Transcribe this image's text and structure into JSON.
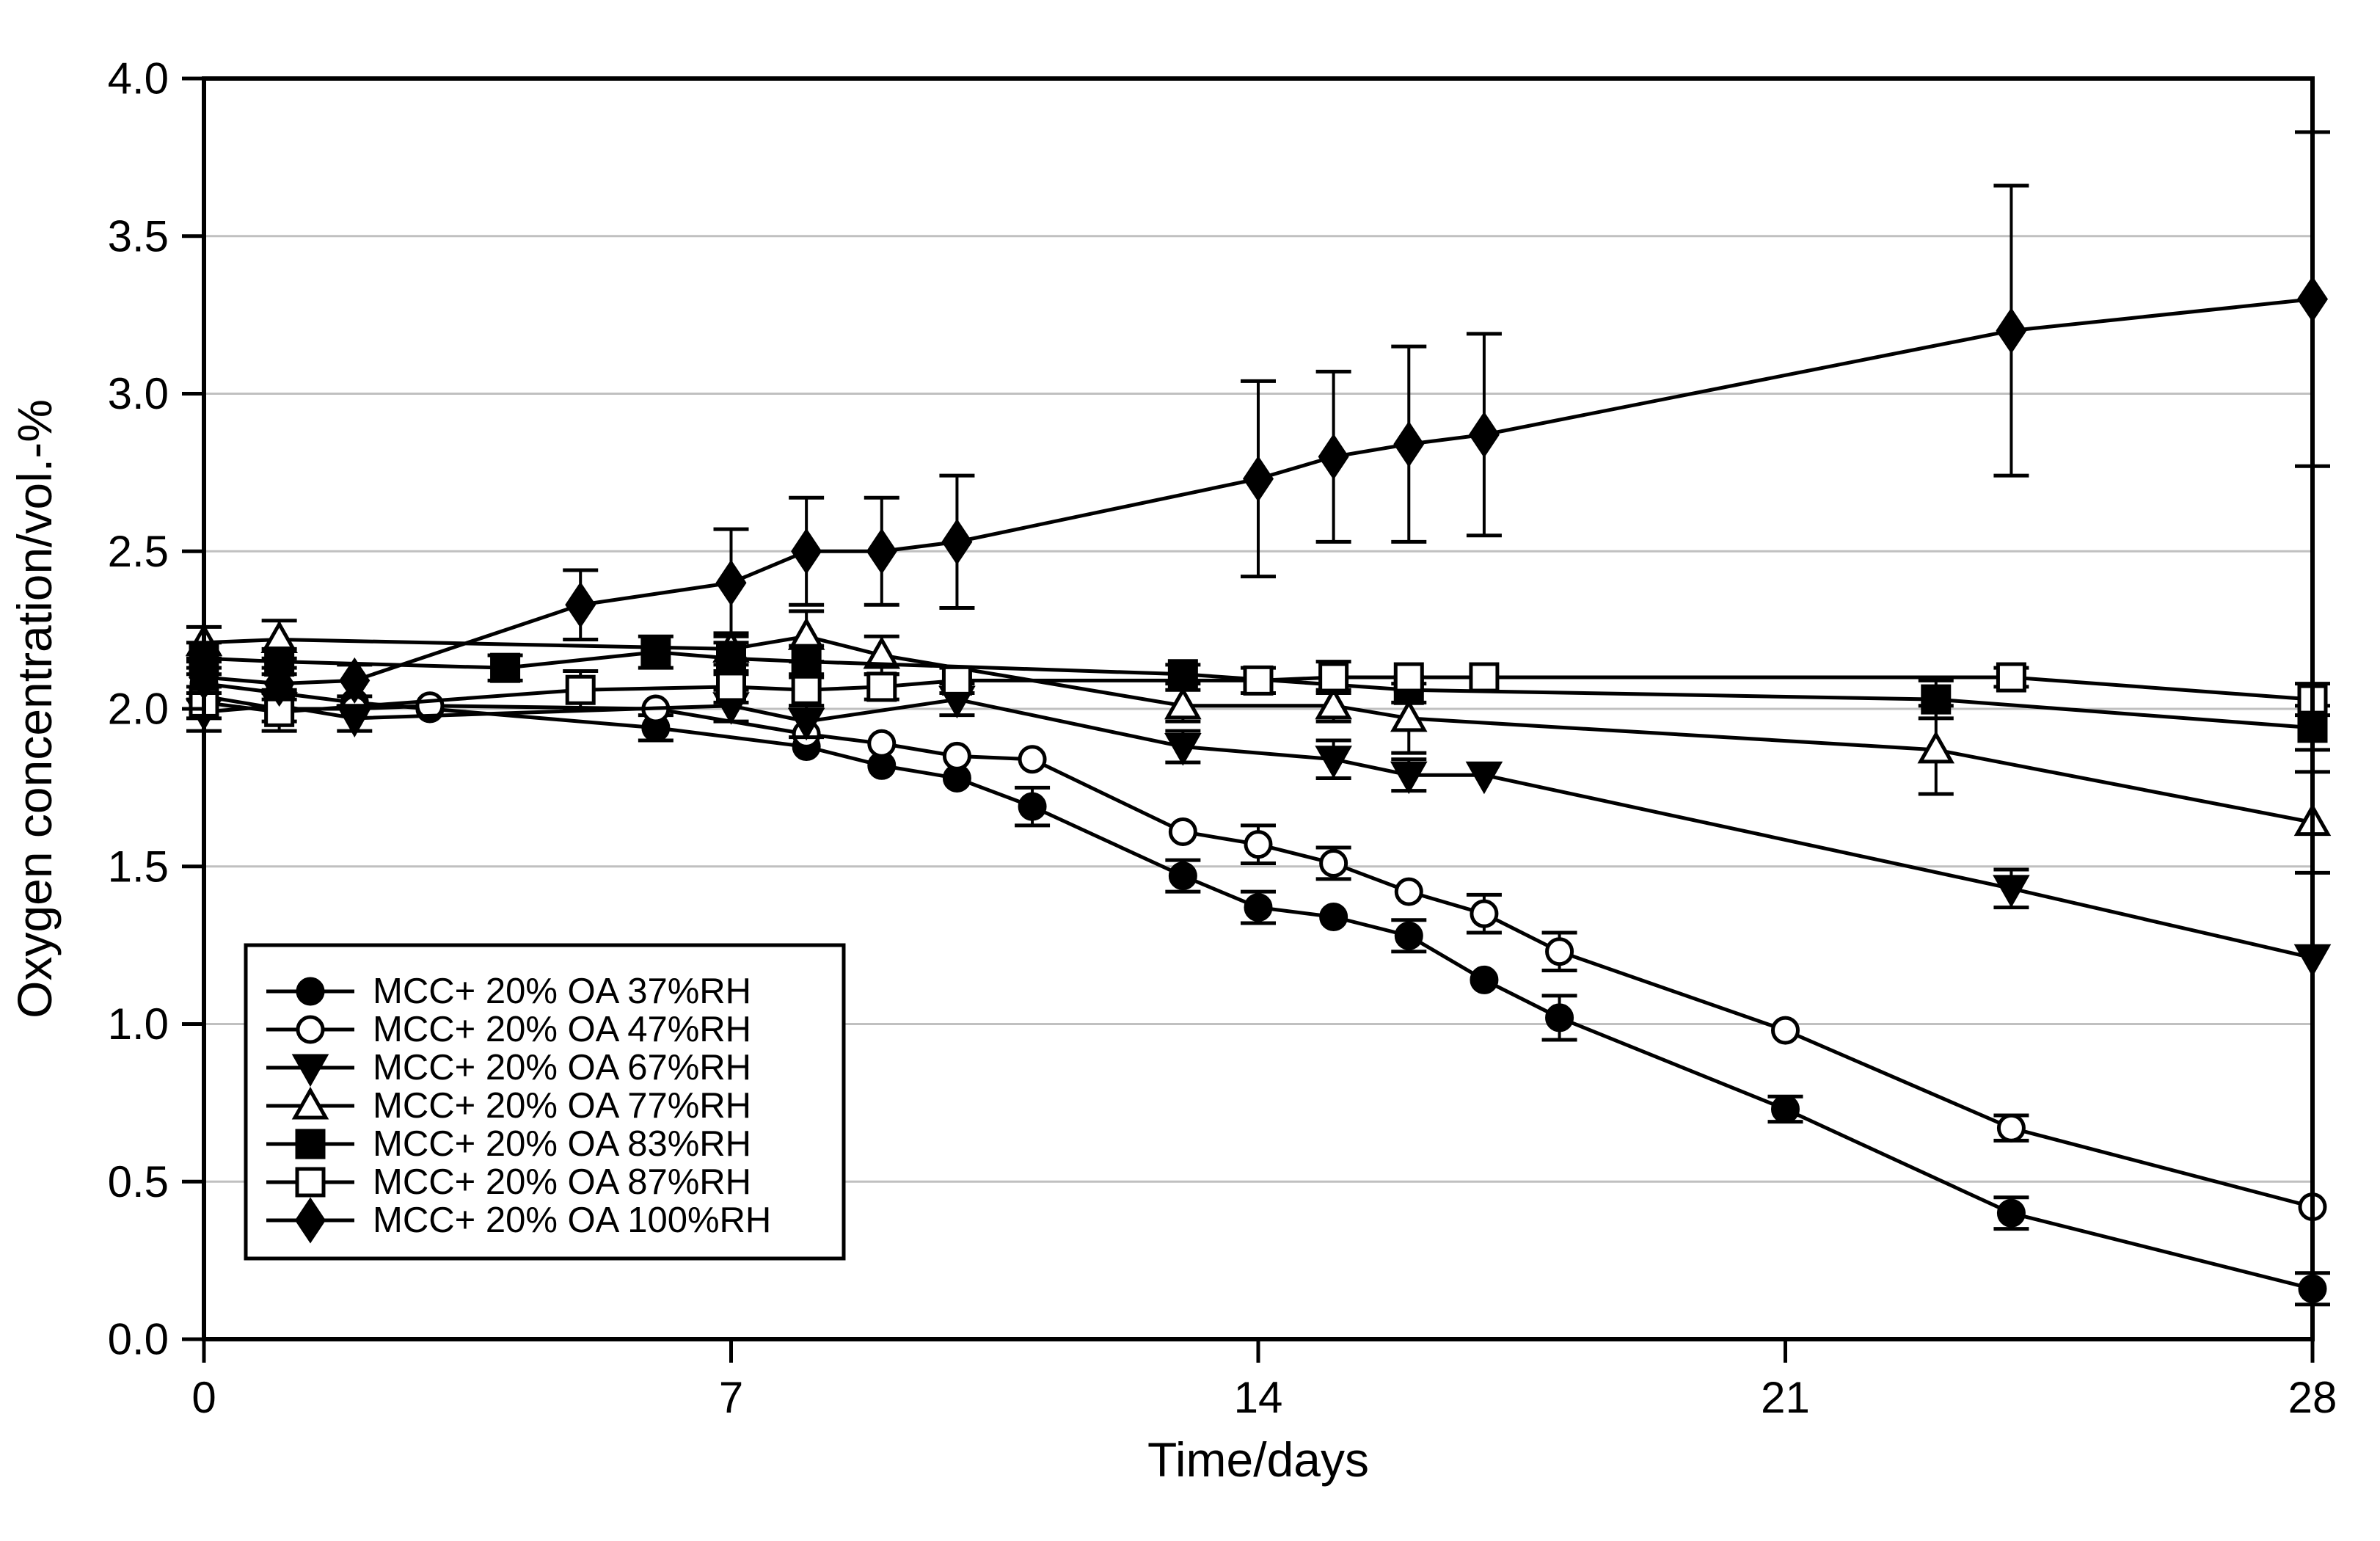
{
  "figure": {
    "background": "#ffffff",
    "line_color": "#000000",
    "grid_color": "#c0c0c0",
    "legend_border_color": "#000000",
    "legend_fill": "#ffffff"
  },
  "chart_data": {
    "type": "line",
    "title": "",
    "xlabel": "Time/days",
    "ylabel": "Oxygen concentration/vol.-%",
    "xlim": [
      0,
      28
    ],
    "ylim": [
      0.0,
      4.0
    ],
    "x_ticks": [
      "0",
      "7",
      "14",
      "21",
      "28"
    ],
    "x_tick_values": [
      0,
      7,
      14,
      21,
      28
    ],
    "y_ticks": [
      "0.0",
      "0.5",
      "1.0",
      "1.5",
      "2.0",
      "2.5",
      "3.0",
      "3.5",
      "4.0"
    ],
    "y_tick_values": [
      0.0,
      0.5,
      1.0,
      1.5,
      2.0,
      2.5,
      3.0,
      3.5,
      4.0
    ],
    "grid": "horizontal-only",
    "legend_position": "lower-left",
    "series": [
      {
        "name": "MCC+ 20% OA 37%RH",
        "marker": "circle-filled",
        "color": "#000000",
        "x": [
          0,
          1,
          2,
          3,
          6,
          8,
          9,
          10,
          11,
          13,
          14,
          15,
          16,
          17,
          18,
          21,
          24,
          28
        ],
        "y": [
          2.08,
          2.05,
          2.02,
          2.0,
          1.94,
          1.88,
          1.82,
          1.78,
          1.69,
          1.47,
          1.37,
          1.34,
          1.28,
          1.14,
          1.02,
          0.73,
          0.4,
          0.16
        ],
        "err": [
          0.05,
          0,
          0,
          0,
          0.04,
          0,
          0,
          0,
          0.06,
          0.05,
          0.05,
          0,
          0.05,
          0,
          0.07,
          0.04,
          0.05,
          0.05
        ]
      },
      {
        "name": "MCC+ 20% OA 47%RH",
        "marker": "circle-open",
        "color": "#000000",
        "x": [
          0,
          1,
          2,
          3,
          6,
          8,
          9,
          10,
          11,
          13,
          14,
          15,
          16,
          17,
          18,
          21,
          24,
          28
        ],
        "y": [
          2.04,
          2.0,
          2.0,
          2.01,
          2.0,
          1.92,
          1.89,
          1.85,
          1.84,
          1.61,
          1.57,
          1.51,
          1.42,
          1.35,
          1.23,
          0.98,
          0.67,
          0.42
        ],
        "err": [
          0,
          0,
          0,
          0,
          0,
          0,
          0,
          0,
          0,
          0,
          0.06,
          0.05,
          0,
          0.06,
          0.06,
          0,
          0.04,
          0
        ]
      },
      {
        "name": "MCC+ 20% OA 67%RH",
        "marker": "triangle-down-filled",
        "color": "#000000",
        "x": [
          0,
          1,
          2,
          7,
          8,
          10,
          13,
          15,
          16,
          17,
          24,
          28
        ],
        "y": [
          1.99,
          2.01,
          1.97,
          2.01,
          1.96,
          2.03,
          1.88,
          1.84,
          1.79,
          1.79,
          1.43,
          1.21
        ],
        "err": [
          0.06,
          0.05,
          0.04,
          0.05,
          0.05,
          0.05,
          0.05,
          0.06,
          0.05,
          0,
          0.06,
          0
        ]
      },
      {
        "name": "MCC+ 20% OA 77%RH",
        "marker": "triangle-up-open",
        "color": "#000000",
        "x": [
          0,
          1,
          7,
          8,
          9,
          13,
          15,
          16,
          23,
          28
        ],
        "y": [
          2.21,
          2.22,
          2.19,
          2.23,
          2.17,
          2.01,
          2.01,
          1.97,
          1.87,
          1.64
        ],
        "err": [
          0.05,
          0.06,
          0.05,
          0.08,
          0.06,
          0.05,
          0.05,
          0.11,
          0.14,
          0.16
        ]
      },
      {
        "name": "MCC+ 20% OA 83%RH",
        "marker": "square-filled",
        "color": "#000000",
        "x": [
          0,
          1,
          4,
          6,
          7,
          8,
          13,
          16,
          23,
          28
        ],
        "y": [
          2.16,
          2.15,
          2.13,
          2.18,
          2.16,
          2.15,
          2.11,
          2.06,
          2.03,
          1.94
        ],
        "err": [
          0.05,
          0.04,
          0.04,
          0.05,
          0.05,
          0.05,
          0.03,
          0.04,
          0.06,
          0.07
        ]
      },
      {
        "name": "MCC+ 20% OA 87%RH",
        "marker": "square-open",
        "color": "#000000",
        "x": [
          0,
          1,
          5,
          7,
          8,
          9,
          10,
          14,
          15,
          16,
          17,
          24,
          28
        ],
        "y": [
          2.02,
          1.99,
          2.06,
          2.07,
          2.06,
          2.07,
          2.09,
          2.09,
          2.1,
          2.1,
          2.1,
          2.1,
          2.03
        ],
        "err": [
          0.05,
          0.06,
          0.06,
          0.05,
          0.05,
          0.04,
          0.04,
          0.04,
          0.05,
          0,
          0,
          0.03,
          0.05
        ]
      },
      {
        "name": "MCC+ 20% OA 100%RH",
        "marker": "diamond-filled",
        "color": "#000000",
        "x": [
          0,
          1,
          2,
          5,
          7,
          8,
          9,
          10,
          14,
          15,
          16,
          17,
          24,
          28
        ],
        "y": [
          2.1,
          2.08,
          2.09,
          2.33,
          2.4,
          2.5,
          2.5,
          2.53,
          2.73,
          2.8,
          2.84,
          2.87,
          3.2,
          3.3
        ],
        "err": [
          0.05,
          0.05,
          0.05,
          0.11,
          0.17,
          0.17,
          0.17,
          0.21,
          0.31,
          0.27,
          0.31,
          0.32,
          0.46,
          0.53
        ]
      }
    ]
  }
}
